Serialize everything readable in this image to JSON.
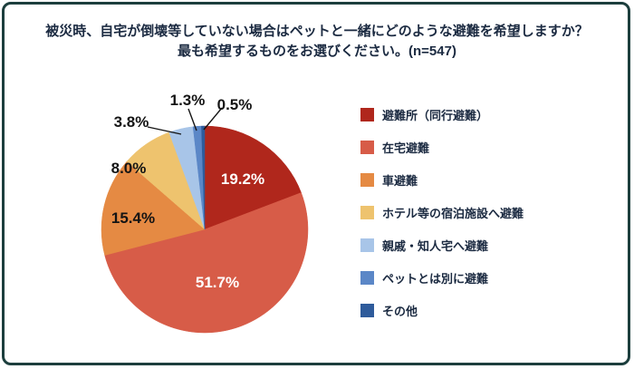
{
  "chart_data": {
    "type": "pie",
    "title_lines": [
      "被災時、自宅が倒壊等していない場合はペットと一緒にどのような避難を希望しますか？",
      "最も希望するものをお選びください。(n=547)"
    ],
    "labels": [
      "避難所（同行避難）",
      "在宅避難",
      "車避難",
      "ホテル等の宿泊施設へ避難",
      "親戚・知人宅へ避難",
      "ペットとは別に避難",
      "その他"
    ],
    "values": [
      19.2,
      51.7,
      15.4,
      8.0,
      3.8,
      1.3,
      0.5
    ],
    "value_labels": [
      "19.2%",
      "51.7%",
      "15.4%",
      "8.0%",
      "3.8%",
      "1.3%",
      "0.5%"
    ],
    "colors": [
      "#b0271c",
      "#d75c48",
      "#e58a43",
      "#eec36e",
      "#a8c5e8",
      "#5b87c7",
      "#2e5b9b"
    ],
    "legend_position": "right",
    "start_angle_deg": 0,
    "direction": "clockwise"
  },
  "frame": {
    "border_color": "#1c3e3d",
    "background_color": "#ffffff",
    "text_color": "#1b2a41"
  }
}
